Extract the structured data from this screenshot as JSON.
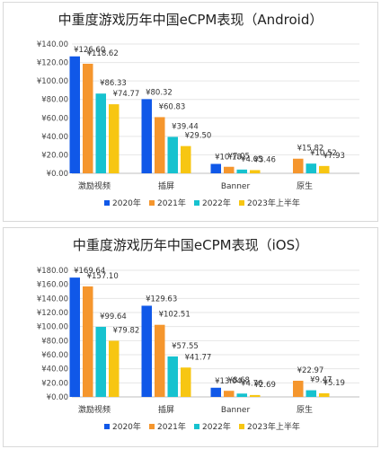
{
  "chart_data": [
    {
      "type": "bar",
      "title": "中重度游戏历年中国eCPM表现（Android）",
      "categories": [
        "激励视频",
        "插屏",
        "Banner",
        "原生"
      ],
      "ylim": [
        0,
        140
      ],
      "yticks": [
        "¥0.00",
        "¥20.00",
        "¥40.00",
        "¥60.00",
        "¥80.00",
        "¥100.00",
        "¥120.00",
        "¥140.00"
      ],
      "ytick_values": [
        0,
        20,
        40,
        60,
        80,
        100,
        120,
        140
      ],
      "grid": true,
      "legend_position": "bottom",
      "series": [
        {
          "name": "2020年",
          "color": "#1058e8",
          "values": [
            126.6,
            80.32,
            10.18,
            null
          ],
          "labels": [
            "¥126.60",
            "¥80.32",
            "¥10.18",
            ""
          ]
        },
        {
          "name": "2021年",
          "color": "#f5962d",
          "values": [
            118.62,
            60.83,
            7.05,
            15.82
          ],
          "labels": [
            "¥118.62",
            "¥60.83",
            "¥7.05",
            "¥15.82"
          ]
        },
        {
          "name": "2022年",
          "color": "#16c2cf",
          "values": [
            86.33,
            39.44,
            4.05,
            10.52
          ],
          "labels": [
            "¥86.33",
            "¥39.44",
            "¥4.05",
            "¥10.52"
          ]
        },
        {
          "name": "2023年上半年",
          "color": "#f7c612",
          "values": [
            74.77,
            29.5,
            3.46,
            7.93
          ],
          "labels": [
            "¥74.77",
            "¥29.50",
            "¥3.46",
            "¥7.93"
          ]
        }
      ]
    },
    {
      "type": "bar",
      "title": "中重度游戏历年中国eCPM表现（iOS）",
      "categories": [
        "激励视频",
        "插屏",
        "Banner",
        "原生"
      ],
      "ylim": [
        0,
        180
      ],
      "yticks": [
        "¥0.00",
        "¥20.00",
        "¥40.00",
        "¥60.00",
        "¥80.00",
        "¥100.00",
        "¥120.00",
        "¥140.00",
        "¥160.00",
        "¥180.00"
      ],
      "ytick_values": [
        0,
        20,
        40,
        60,
        80,
        100,
        120,
        140,
        160,
        180
      ],
      "grid": true,
      "legend_position": "bottom",
      "series": [
        {
          "name": "2020年",
          "color": "#1058e8",
          "values": [
            169.64,
            129.63,
            13.04,
            null
          ],
          "labels": [
            "¥169.64",
            "¥129.63",
            "¥13.04",
            ""
          ]
        },
        {
          "name": "2021年",
          "color": "#f5962d",
          "values": [
            157.1,
            102.51,
            8.68,
            22.97
          ],
          "labels": [
            "¥157.10",
            "¥102.51",
            "¥8.68",
            "¥22.97"
          ]
        },
        {
          "name": "2022年",
          "color": "#16c2cf",
          "values": [
            99.64,
            57.55,
            4.76,
            9.47
          ],
          "labels": [
            "¥99.64",
            "¥57.55",
            "¥4.76",
            "¥9.47"
          ]
        },
        {
          "name": "2023年上半年",
          "color": "#f7c612",
          "values": [
            79.82,
            41.77,
            2.69,
            5.19
          ],
          "labels": [
            "¥79.82",
            "¥41.77",
            "¥2.69",
            "¥5.19"
          ]
        }
      ]
    }
  ]
}
